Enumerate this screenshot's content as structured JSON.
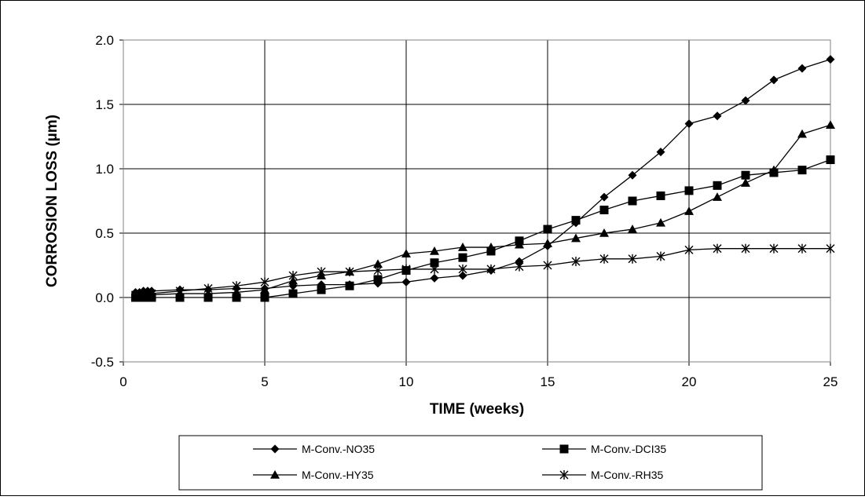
{
  "chart_data": {
    "type": "line",
    "title": "",
    "xlabel": "TIME (weeks)",
    "ylabel": "CORROSION LOSS (µm)",
    "xlim": [
      0,
      25
    ],
    "ylim": [
      -0.5,
      2.0
    ],
    "xticks": [
      0,
      5,
      10,
      15,
      20,
      25
    ],
    "yticks": [
      -0.5,
      0.0,
      0.5,
      1.0,
      1.5,
      2.0
    ],
    "xtick_labels": [
      "0",
      "5",
      "10",
      "15",
      "20",
      "25"
    ],
    "ytick_labels": [
      "-0.5",
      "0.0",
      "0.5",
      "1.0",
      "1.5",
      "2.0"
    ],
    "grid": true,
    "legend_position": "bottom",
    "series": [
      {
        "name": "M-Conv.-NO35",
        "marker": "diamond",
        "x": [
          0.43,
          0.57,
          0.71,
          0.86,
          1,
          2,
          3,
          4,
          5,
          6,
          7,
          8,
          9,
          10,
          11,
          12,
          13,
          14,
          15,
          16,
          17,
          18,
          19,
          20,
          21,
          22,
          23,
          24,
          25
        ],
        "y": [
          0.04,
          0.04,
          0.05,
          0.05,
          0.05,
          0.06,
          0.06,
          0.07,
          0.07,
          0.09,
          0.1,
          0.1,
          0.11,
          0.12,
          0.15,
          0.17,
          0.21,
          0.28,
          0.4,
          0.58,
          0.78,
          0.95,
          1.13,
          1.35,
          1.41,
          1.53,
          1.69,
          1.78,
          1.85
        ]
      },
      {
        "name": "M-Conv.-DCI35",
        "marker": "square",
        "x": [
          0.43,
          0.57,
          0.71,
          0.86,
          1,
          2,
          3,
          4,
          5,
          6,
          7,
          8,
          9,
          10,
          11,
          12,
          13,
          14,
          15,
          16,
          17,
          18,
          19,
          20,
          21,
          22,
          23,
          24,
          25
        ],
        "y": [
          0.0,
          0.0,
          0.0,
          0.0,
          0.0,
          0.0,
          0.0,
          0.0,
          0.0,
          0.03,
          0.06,
          0.09,
          0.14,
          0.21,
          0.27,
          0.31,
          0.36,
          0.44,
          0.53,
          0.6,
          0.68,
          0.75,
          0.79,
          0.83,
          0.87,
          0.95,
          0.97,
          0.99,
          1.07
        ]
      },
      {
        "name": "M-Conv.-HY35",
        "marker": "triangle",
        "x": [
          0.43,
          0.57,
          0.71,
          0.86,
          1,
          2,
          3,
          4,
          5,
          6,
          7,
          8,
          9,
          10,
          11,
          12,
          13,
          14,
          15,
          16,
          17,
          18,
          19,
          20,
          21,
          22,
          23,
          24,
          25
        ],
        "y": [
          0.01,
          0.01,
          0.02,
          0.02,
          0.02,
          0.03,
          0.03,
          0.04,
          0.06,
          0.13,
          0.17,
          0.2,
          0.26,
          0.34,
          0.36,
          0.39,
          0.39,
          0.41,
          0.42,
          0.46,
          0.5,
          0.53,
          0.58,
          0.67,
          0.78,
          0.89,
          0.99,
          1.27,
          1.34
        ]
      },
      {
        "name": "M-Conv.-RH35",
        "marker": "star",
        "x": [
          0.43,
          0.57,
          0.71,
          0.86,
          1,
          2,
          3,
          4,
          5,
          6,
          7,
          8,
          9,
          10,
          11,
          12,
          13,
          14,
          15,
          16,
          17,
          18,
          19,
          20,
          21,
          22,
          23,
          24,
          25
        ],
        "y": [
          0.02,
          0.02,
          0.03,
          0.03,
          0.03,
          0.05,
          0.07,
          0.09,
          0.12,
          0.17,
          0.2,
          0.2,
          0.21,
          0.22,
          0.22,
          0.22,
          0.22,
          0.24,
          0.25,
          0.28,
          0.3,
          0.3,
          0.32,
          0.37,
          0.38,
          0.38,
          0.38,
          0.38,
          0.38
        ]
      }
    ]
  }
}
